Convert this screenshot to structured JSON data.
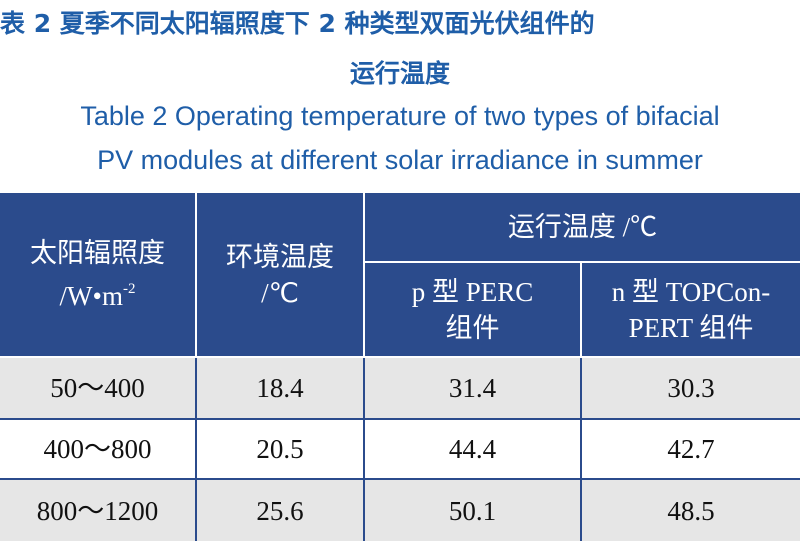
{
  "title": {
    "zh_line1": "表 2  夏季不同太阳辐照度下 2 种类型双面光伏组件的",
    "zh_line2": "运行温度",
    "en_line1": "Table 2  Operating temperature of two types of bifacial",
    "en_line2": "PV modules at different solar irradiance in summer"
  },
  "table": {
    "header": {
      "irradiance": {
        "label": "太阳辐照度",
        "unit": "/W•m",
        "unit_exp": "-2"
      },
      "ambient": {
        "label": "环境温度",
        "unit": "/℃"
      },
      "operating": "运行温度 /℃",
      "p_type": {
        "line1": "p 型 PERC",
        "line2": "组件"
      },
      "n_type": {
        "line1": "n 型 TOPCon-",
        "line2": "PERT 组件"
      }
    },
    "rows": [
      [
        "50～400",
        "18.4",
        "31.4",
        "30.3"
      ],
      [
        "400～800",
        "20.5",
        "44.4",
        "42.7"
      ],
      [
        "800～1200",
        "25.6",
        "50.1",
        "48.5"
      ]
    ]
  }
}
